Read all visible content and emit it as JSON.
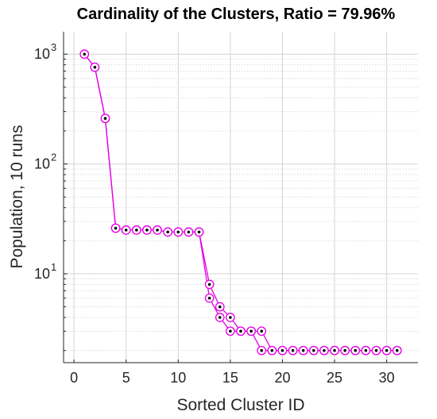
{
  "chart_data": {
    "type": "line",
    "title": "Cardinality of the Clusters, Ratio = 79.96%",
    "xlabel": "Sorted Cluster ID",
    "ylabel": "Population, 10 runs",
    "yscale": "log",
    "xlim": [
      -1,
      33
    ],
    "ylim": [
      1.55,
      1600
    ],
    "grid": true,
    "xticks": [
      0,
      5,
      10,
      15,
      20,
      25,
      30
    ],
    "xtick_labels": [
      "0",
      "5",
      "10",
      "15",
      "20",
      "25",
      "30"
    ],
    "yticks": [
      10,
      100,
      1000
    ],
    "ytick_labels": [
      {
        "base": "10",
        "exp": "1"
      },
      {
        "base": "10",
        "exp": "2"
      },
      {
        "base": "10",
        "exp": "3"
      }
    ],
    "line_color": "#e600e6",
    "marker_edge_color": "#e600e6",
    "marker_face_color": "#ffffff",
    "marker_center_color": "#000000",
    "series": [
      {
        "x": [
          1,
          2,
          3,
          4,
          5,
          6,
          7,
          8,
          9,
          10,
          11,
          12,
          13,
          14,
          15,
          16,
          17,
          18,
          19,
          20,
          21,
          22,
          23,
          24,
          25,
          26,
          27,
          28,
          29,
          30,
          31
        ],
        "values": [
          1000,
          760,
          260,
          26,
          25,
          25,
          25,
          25,
          24,
          24,
          24,
          24,
          8,
          5,
          4,
          3,
          3,
          3,
          2,
          2,
          2,
          2,
          2,
          2,
          2,
          2,
          2,
          2,
          2,
          2,
          2
        ]
      },
      {
        "x": [
          1,
          2,
          3,
          4,
          5,
          6,
          7,
          8,
          9,
          10,
          11,
          12,
          13,
          14,
          15,
          16,
          17,
          18,
          19,
          20,
          21,
          22,
          23,
          24,
          25,
          26,
          27,
          28,
          29,
          30,
          31
        ],
        "values": [
          1000,
          760,
          260,
          26,
          25,
          25,
          25,
          25,
          24,
          24,
          24,
          24,
          6,
          4,
          3,
          3,
          3,
          2,
          2,
          2,
          2,
          2,
          2,
          2,
          2,
          2,
          2,
          2,
          2,
          2,
          2
        ]
      }
    ]
  }
}
